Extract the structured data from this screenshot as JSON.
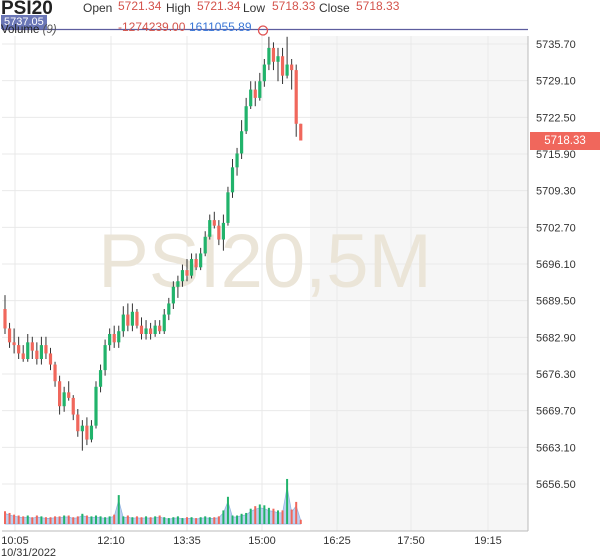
{
  "header": {
    "symbol": "PSI20",
    "open_label": "Open",
    "open_value": "5721.34",
    "high_label": "High",
    "high_value": "5721.34",
    "low_label": "Low",
    "low_value": "5718.33",
    "close_label": "Close",
    "close_value": "5718.33",
    "change_value": "-1274239.00",
    "volume_value": "1611055.89",
    "volume_label": "Volume",
    "volume_period": "(9)",
    "badge_value": "5737.05"
  },
  "watermark": "PSI20,5M",
  "last_price": "5718.33",
  "colors": {
    "up": "#21b36b",
    "down": "#f0675c",
    "grid": "#e9e9e9",
    "hline": "#5d5d9e",
    "volume_area": "#aac6ee"
  },
  "chart_data": {
    "type": "candlestick",
    "y_ticks": [
      "5735.70",
      "5729.10",
      "5722.50",
      "5715.90",
      "5709.30",
      "5702.70",
      "5696.10",
      "5689.50",
      "5682.90",
      "5676.30",
      "5669.70",
      "5663.10",
      "5656.50"
    ],
    "x_ticks": [
      "10:05",
      "12:10",
      "13:35",
      "15:00",
      "16:25",
      "17:50",
      "19:15"
    ],
    "x_sublabel": "10/31/2022",
    "ylim": [
      5652,
      5740
    ],
    "high_marker": 5737.05,
    "candles": [
      [
        5688,
        5690.5,
        5683.5,
        5684.5
      ],
      [
        5684.5,
        5685.5,
        5681,
        5682
      ],
      [
        5682,
        5684.5,
        5680,
        5681.5
      ],
      [
        5681.5,
        5683,
        5679,
        5680
      ],
      [
        5680,
        5681.5,
        5678.5,
        5679
      ],
      [
        5679,
        5683.5,
        5678.5,
        5682
      ],
      [
        5682,
        5683,
        5679,
        5680.5
      ],
      [
        5680.5,
        5682,
        5678,
        5679
      ],
      [
        5679,
        5683,
        5678,
        5681.5
      ],
      [
        5681.5,
        5683,
        5679,
        5680
      ],
      [
        5680,
        5681,
        5677,
        5678
      ],
      [
        5678,
        5678.5,
        5674,
        5675
      ],
      [
        5675,
        5676,
        5669,
        5670.5
      ],
      [
        5670.5,
        5674,
        5669.5,
        5673
      ],
      [
        5673,
        5675,
        5671.5,
        5672
      ],
      [
        5672,
        5672.5,
        5668,
        5669
      ],
      [
        5669,
        5670,
        5665,
        5666
      ],
      [
        5666,
        5668,
        5662.5,
        5667
      ],
      [
        5667,
        5668.5,
        5663.5,
        5664.5
      ],
      [
        5664.5,
        5668,
        5664,
        5667
      ],
      [
        5667,
        5675,
        5666.5,
        5674
      ],
      [
        5674,
        5678,
        5673,
        5677
      ],
      [
        5677,
        5682.5,
        5676,
        5681.5
      ],
      [
        5681.5,
        5684.5,
        5680.5,
        5683.5
      ],
      [
        5683.5,
        5685,
        5681,
        5682
      ],
      [
        5682,
        5685,
        5681,
        5684
      ],
      [
        5684,
        5688.5,
        5683,
        5687
      ],
      [
        5687,
        5689,
        5684,
        5685
      ],
      [
        5685,
        5689,
        5684,
        5687.5
      ],
      [
        5687.5,
        5688,
        5684.5,
        5685
      ],
      [
        5685,
        5686.5,
        5682.5,
        5683.5
      ],
      [
        5683.5,
        5686,
        5682.5,
        5684.5
      ],
      [
        5684.5,
        5685.5,
        5682.5,
        5683.5
      ],
      [
        5683.5,
        5686,
        5683,
        5685
      ],
      [
        5685,
        5686,
        5683.5,
        5684
      ],
      [
        5684,
        5688,
        5683.5,
        5687
      ],
      [
        5687,
        5690,
        5686,
        5689
      ],
      [
        5689,
        5693,
        5688,
        5692
      ],
      [
        5692,
        5694,
        5690,
        5693
      ],
      [
        5693,
        5696,
        5692,
        5695
      ],
      [
        5695,
        5697,
        5693,
        5694
      ],
      [
        5694,
        5698,
        5693.5,
        5697
      ],
      [
        5697,
        5698,
        5695,
        5695.5
      ],
      [
        5695.5,
        5699,
        5695,
        5698
      ],
      [
        5698,
        5702,
        5697.5,
        5701
      ],
      [
        5701,
        5705,
        5700.5,
        5704
      ],
      [
        5704,
        5705.5,
        5702.5,
        5703
      ],
      [
        5703,
        5704,
        5699.5,
        5700.5
      ],
      [
        5700.5,
        5705,
        5698.5,
        5703.5
      ],
      [
        5703.5,
        5710,
        5703,
        5709
      ],
      [
        5709,
        5715,
        5708,
        5713.5
      ],
      [
        5713.5,
        5717,
        5712,
        5716
      ],
      [
        5716,
        5722,
        5715,
        5720
      ],
      [
        5720,
        5726,
        5719.5,
        5724.5
      ],
      [
        5724.5,
        5729,
        5724,
        5727.5
      ],
      [
        5727.5,
        5729,
        5724.5,
        5726
      ],
      [
        5726,
        5730.5,
        5725.5,
        5729
      ],
      [
        5729,
        5733,
        5728,
        5732
      ],
      [
        5732,
        5737,
        5731,
        5735
      ],
      [
        5735,
        5736,
        5731,
        5732.5
      ],
      [
        5732.5,
        5735,
        5729,
        5733.5
      ],
      [
        5733.5,
        5735,
        5728.5,
        5730
      ],
      [
        5730,
        5737,
        5729.5,
        5732
      ],
      [
        5732,
        5733,
        5727.5,
        5731
      ],
      [
        5731,
        5732,
        5719,
        5721.34
      ],
      [
        5721.34,
        5721.34,
        5718.33,
        5718.33
      ]
    ],
    "volume": [
      1.5,
      1.3,
      1.1,
      1,
      0.9,
      1,
      0.8,
      1,
      0.9,
      0.8,
      0.8,
      0.9,
      0.9,
      1,
      1,
      0.8,
      0.9,
      1.2,
      1,
      0.9,
      1,
      0.9,
      0.8,
      0.9,
      1.1,
      3.4,
      0.9,
      1,
      0.8,
      0.9,
      0.8,
      0.9,
      0.8,
      0.9,
      1,
      0.8,
      0.7,
      0.8,
      0.9,
      0.7,
      0.8,
      0.8,
      0.7,
      0.8,
      0.9,
      0.8,
      0.8,
      0.9,
      1.6,
      3.2,
      1,
      1,
      1.2,
      1.3,
      1.8,
      2.1,
      2.3,
      2.2,
      1.9,
      1.8,
      1.6,
      1.6,
      5.3,
      1.7,
      2.6,
      0.5
    ]
  }
}
